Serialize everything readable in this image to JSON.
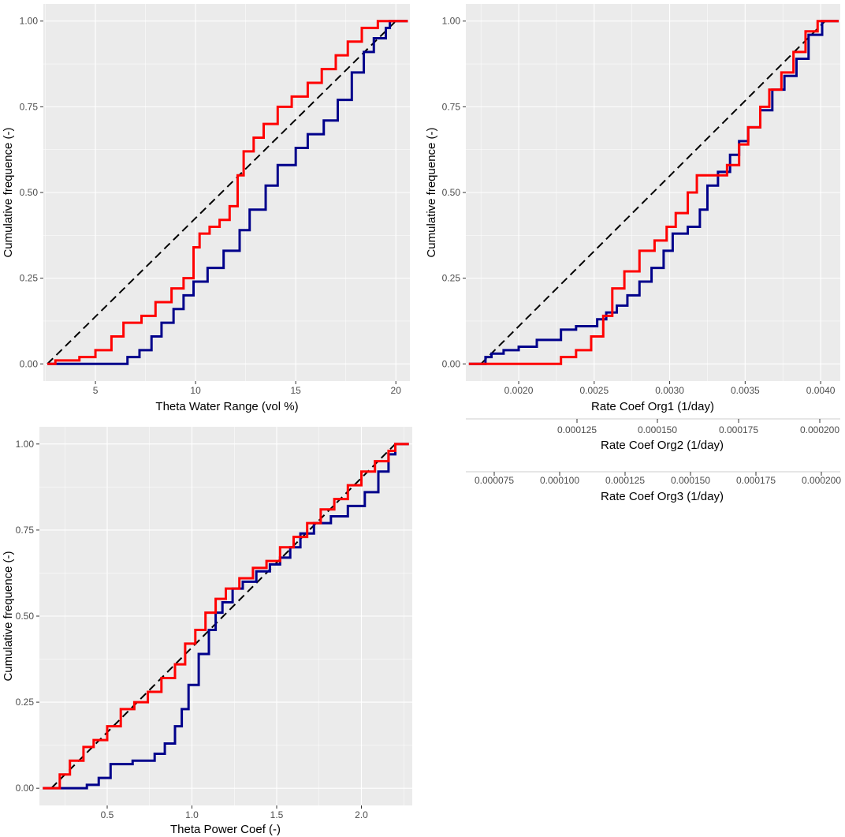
{
  "colors": {
    "blue": "#00008b",
    "red": "#ff0000",
    "diagonal": "#000000"
  },
  "chart_data": [
    {
      "type": "line",
      "title": "",
      "xlabel": "Theta Water Range (vol %)",
      "ylabel": "Cumulative frequence (-)",
      "xlim": [
        2.4,
        20.7
      ],
      "ylim": [
        -0.05,
        1.05
      ],
      "xticks": [
        5,
        10,
        15,
        20
      ],
      "xtick_labels": [
        "5",
        "10",
        "15",
        "20"
      ],
      "yticks": [
        0,
        0.25,
        0.5,
        0.75,
        1
      ],
      "ytick_labels": [
        "0.00",
        "0.25",
        "0.50",
        "0.75",
        "1.00"
      ],
      "diagonal": {
        "x": [
          2.6,
          20.0
        ],
        "y": [
          0,
          1
        ],
        "style": "dashed"
      },
      "series": [
        {
          "name": "blue",
          "color": "#00008b",
          "step": true,
          "x": [
            2.6,
            6.3,
            6.6,
            7.2,
            7.8,
            8.3,
            8.9,
            9.4,
            9.9,
            10.6,
            11.4,
            12.2,
            12.7,
            13.5,
            14.1,
            15.0,
            15.6,
            16.4,
            17.1,
            17.8,
            18.4,
            18.9,
            19.5,
            19.7,
            20.6
          ],
          "y": [
            0,
            0,
            0.02,
            0.04,
            0.08,
            0.12,
            0.16,
            0.2,
            0.24,
            0.28,
            0.33,
            0.39,
            0.45,
            0.52,
            0.58,
            0.63,
            0.67,
            0.71,
            0.77,
            0.85,
            0.91,
            0.95,
            0.98,
            1.0,
            1.0
          ]
        },
        {
          "name": "red",
          "color": "#ff0000",
          "step": true,
          "x": [
            2.6,
            3.0,
            4.2,
            5.0,
            5.8,
            6.4,
            7.3,
            8.0,
            8.8,
            9.4,
            9.9,
            10.2,
            10.7,
            11.2,
            11.7,
            12.1,
            12.4,
            12.9,
            13.4,
            14.1,
            14.8,
            15.6,
            16.3,
            17.0,
            17.6,
            18.3,
            19.1,
            19.8,
            20.6
          ],
          "y": [
            0,
            0.01,
            0.02,
            0.04,
            0.08,
            0.12,
            0.14,
            0.18,
            0.22,
            0.25,
            0.34,
            0.38,
            0.4,
            0.42,
            0.46,
            0.55,
            0.62,
            0.66,
            0.7,
            0.75,
            0.78,
            0.82,
            0.86,
            0.9,
            0.94,
            0.98,
            1.0,
            1.0,
            1.0
          ]
        }
      ]
    },
    {
      "type": "line",
      "title": "",
      "xlabel": "Rate Coef Org1 (1/day)",
      "ylabel": "Cumulative frequence (-)",
      "xlim": [
        0.00165,
        0.00413
      ],
      "ylim": [
        -0.05,
        1.05
      ],
      "xticks": [
        0.002,
        0.0025,
        0.003,
        0.0035,
        0.004
      ],
      "xtick_labels": [
        "0.0020",
        "0.0025",
        "0.0030",
        "0.0035",
        "0.0040"
      ],
      "yticks": [
        0,
        0.25,
        0.5,
        0.75,
        1
      ],
      "ytick_labels": [
        "0.00",
        "0.25",
        "0.50",
        "0.75",
        "1.00"
      ],
      "secondary_axes": [
        {
          "label": "Rate Coef Org2 (1/day)",
          "ticks": [
            "0.000125",
            "0.000150",
            "0.000175",
            "0.000200"
          ]
        },
        {
          "label": "Rate Coef Org3 (1/day)",
          "ticks": [
            "0.000075",
            "0.000100",
            "0.000125",
            "0.000150",
            "0.000175",
            "0.000200"
          ]
        }
      ],
      "diagonal": {
        "x": [
          0.00175,
          0.00403
        ],
        "y": [
          0,
          1
        ],
        "style": "dashed"
      },
      "series": [
        {
          "name": "blue",
          "color": "#00008b",
          "step": true,
          "x": [
            0.00167,
            0.00178,
            0.00182,
            0.0019,
            0.002,
            0.00212,
            0.00228,
            0.00238,
            0.00252,
            0.00258,
            0.00265,
            0.00272,
            0.0028,
            0.00288,
            0.00296,
            0.00302,
            0.00312,
            0.0032,
            0.00325,
            0.00332,
            0.0034,
            0.00346,
            0.00352,
            0.0036,
            0.00368,
            0.00376,
            0.00384,
            0.00392,
            0.00401,
            0.00412
          ],
          "y": [
            0,
            0.02,
            0.03,
            0.04,
            0.05,
            0.07,
            0.1,
            0.11,
            0.13,
            0.15,
            0.17,
            0.2,
            0.24,
            0.28,
            0.33,
            0.38,
            0.4,
            0.45,
            0.52,
            0.56,
            0.61,
            0.65,
            0.69,
            0.74,
            0.8,
            0.84,
            0.89,
            0.96,
            1.0,
            1.0
          ]
        },
        {
          "name": "red",
          "color": "#ff0000",
          "step": true,
          "x": [
            0.00167,
            0.00228,
            0.00238,
            0.00248,
            0.00256,
            0.00262,
            0.0027,
            0.0028,
            0.0029,
            0.00298,
            0.00304,
            0.00312,
            0.00318,
            0.0033,
            0.00338,
            0.00346,
            0.00352,
            0.0036,
            0.00366,
            0.00374,
            0.00382,
            0.0039,
            0.00398,
            0.00412
          ],
          "y": [
            0,
            0.02,
            0.04,
            0.08,
            0.14,
            0.22,
            0.27,
            0.33,
            0.36,
            0.4,
            0.44,
            0.5,
            0.55,
            0.55,
            0.58,
            0.64,
            0.69,
            0.75,
            0.8,
            0.85,
            0.91,
            0.97,
            1.0,
            1.0
          ]
        }
      ]
    },
    {
      "type": "line",
      "title": "",
      "xlabel": "Theta Power Coef (-)",
      "ylabel": "Cumulative frequence (-)",
      "xlim": [
        0.1,
        2.3
      ],
      "ylim": [
        -0.05,
        1.05
      ],
      "xticks": [
        0.5,
        1.0,
        1.5,
        2.0
      ],
      "xtick_labels": [
        "0.5",
        "1.0",
        "1.5",
        "2.0"
      ],
      "yticks": [
        0,
        0.25,
        0.5,
        0.75,
        1
      ],
      "ytick_labels": [
        "0.00",
        "0.25",
        "0.50",
        "0.75",
        "1.00"
      ],
      "diagonal": {
        "x": [
          0.17,
          2.2
        ],
        "y": [
          0,
          1
        ],
        "style": "dashed"
      },
      "series": [
        {
          "name": "blue",
          "color": "#00008b",
          "step": true,
          "x": [
            0.12,
            0.25,
            0.38,
            0.45,
            0.52,
            0.65,
            0.78,
            0.84,
            0.9,
            0.94,
            0.98,
            1.04,
            1.1,
            1.14,
            1.18,
            1.24,
            1.3,
            1.38,
            1.46,
            1.52,
            1.58,
            1.64,
            1.72,
            1.82,
            1.92,
            2.02,
            2.1,
            2.16,
            2.2,
            2.28
          ],
          "y": [
            0,
            0.0,
            0.01,
            0.03,
            0.07,
            0.08,
            0.1,
            0.13,
            0.18,
            0.23,
            0.3,
            0.39,
            0.46,
            0.51,
            0.54,
            0.58,
            0.6,
            0.63,
            0.65,
            0.67,
            0.7,
            0.74,
            0.77,
            0.79,
            0.82,
            0.86,
            0.92,
            0.97,
            1.0,
            1.0
          ]
        },
        {
          "name": "red",
          "color": "#ff0000",
          "step": true,
          "x": [
            0.12,
            0.22,
            0.28,
            0.36,
            0.42,
            0.5,
            0.58,
            0.66,
            0.74,
            0.82,
            0.9,
            0.96,
            1.02,
            1.08,
            1.14,
            1.2,
            1.28,
            1.36,
            1.44,
            1.52,
            1.6,
            1.68,
            1.76,
            1.84,
            1.92,
            2.0,
            2.08,
            2.16,
            2.2,
            2.28
          ],
          "y": [
            0,
            0.04,
            0.08,
            0.12,
            0.14,
            0.18,
            0.23,
            0.25,
            0.28,
            0.32,
            0.36,
            0.42,
            0.46,
            0.51,
            0.55,
            0.58,
            0.61,
            0.64,
            0.66,
            0.7,
            0.73,
            0.77,
            0.81,
            0.84,
            0.88,
            0.92,
            0.95,
            0.98,
            1.0,
            1.0
          ]
        }
      ]
    }
  ]
}
